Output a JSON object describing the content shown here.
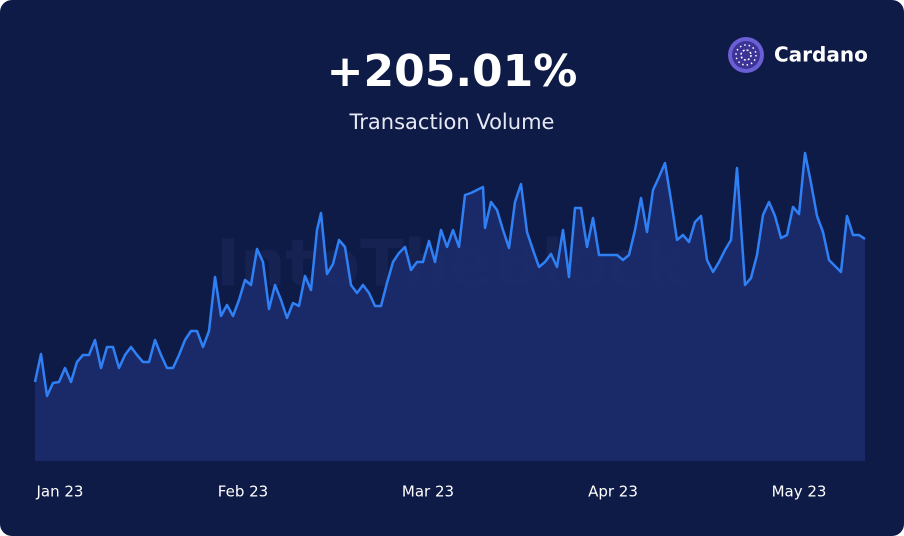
{
  "brand": "Cardano",
  "watermark": "IntoTheBlock",
  "chart_data": {
    "type": "area",
    "title": "+205.01%",
    "subtitle": "Transaction Volume",
    "color": "#2f80f5",
    "fill": "#1c2b6b",
    "xlim": [
      0,
      830
    ],
    "xticks": [
      {
        "value": 25,
        "label": "Jan 23"
      },
      {
        "value": 208,
        "label": "Feb 23"
      },
      {
        "value": 393,
        "label": "Mar 23"
      },
      {
        "value": 578,
        "label": "Apr 23"
      },
      {
        "value": 764,
        "label": "May 23"
      }
    ],
    "x": [
      0,
      6,
      12,
      18,
      24,
      30,
      36,
      42,
      48,
      54,
      60,
      66,
      72,
      78,
      84,
      90,
      96,
      102,
      108,
      114,
      120,
      126,
      132,
      138,
      144,
      150,
      156,
      162,
      168,
      174,
      180,
      186,
      192,
      198,
      204,
      210,
      216,
      222,
      228,
      234,
      240,
      246,
      252,
      258,
      264,
      270,
      276,
      282,
      286,
      292,
      298,
      304,
      310,
      316,
      322,
      328,
      334,
      340,
      346,
      352,
      358,
      364,
      370,
      376,
      382,
      388,
      394,
      400,
      406,
      412,
      418,
      424,
      430,
      436,
      442,
      448,
      450,
      456,
      462,
      468,
      474,
      480,
      486,
      492,
      498,
      504,
      510,
      516,
      522,
      528,
      534,
      540,
      546,
      552,
      558,
      564,
      570,
      576,
      582,
      588,
      594,
      600,
      606,
      612,
      618,
      624,
      630,
      636,
      642,
      648,
      654,
      660,
      666,
      672,
      678,
      684,
      690,
      696,
      702,
      710,
      716,
      722,
      728,
      734,
      740,
      746,
      752,
      758,
      764,
      770,
      776,
      782,
      788,
      794,
      800,
      806,
      812,
      818,
      824,
      830
    ],
    "values": [
      79,
      107,
      65,
      78,
      79,
      93,
      79,
      99,
      106,
      106,
      121,
      93,
      114,
      114,
      93,
      106,
      114,
      106,
      99,
      99,
      121,
      106,
      93,
      93,
      106,
      121,
      130,
      130,
      114,
      130,
      184,
      145,
      156,
      145,
      161,
      181,
      176,
      212,
      199,
      152,
      176,
      161,
      143,
      158,
      155,
      185,
      171,
      231,
      248,
      187,
      197,
      221,
      214,
      176,
      168,
      176,
      168,
      155,
      155,
      178,
      199,
      208,
      214,
      191,
      199,
      199,
      220,
      199,
      231,
      214,
      231,
      214,
      266,
      268,
      271,
      274,
      233,
      259,
      251,
      231,
      213,
      259,
      277,
      229,
      211,
      194,
      199,
      207,
      194,
      231,
      184,
      253,
      253,
      214,
      243,
      206,
      206,
      206,
      206,
      201,
      206,
      231,
      263,
      229,
      271,
      284,
      298,
      261,
      221,
      226,
      219,
      239,
      245,
      201,
      189,
      199,
      211,
      221,
      293,
      176,
      183,
      206,
      246,
      259,
      245,
      223,
      226,
      254,
      247,
      308,
      278,
      245,
      229,
      201,
      195,
      189,
      245,
      226,
      226,
      222
    ]
  }
}
